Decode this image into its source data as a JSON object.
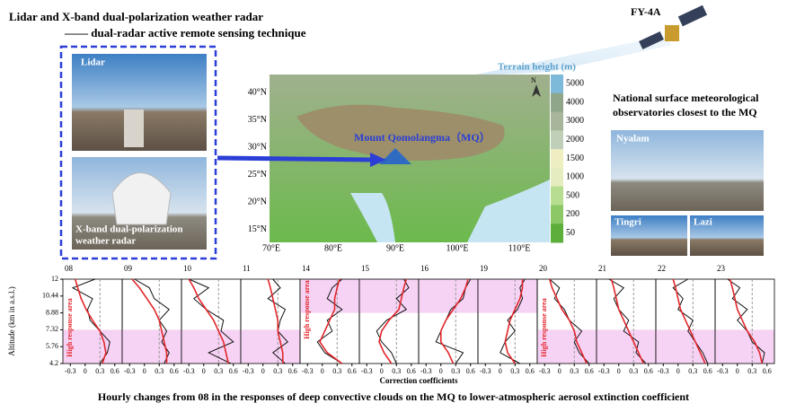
{
  "header": {
    "title": "Lidar and X-band dual-polarization weather radar",
    "subtitle": "—— dual-radar active remote sensing technique"
  },
  "photos": {
    "lidar": "Lidar",
    "radar": [
      "X-band dual-polarization",
      "weather radar"
    ]
  },
  "satellite": "FY-4A",
  "map": {
    "legend_title": "Terrain height (m)",
    "site": "Mount Qomolangma（MQ）",
    "north": "N",
    "lat_labels": [
      "40°N",
      "35°N",
      "30°N",
      "25°N",
      "20°N",
      "15°N"
    ],
    "lon_labels": [
      "70°E",
      "80°E",
      "90°E",
      "100°E",
      "110°E"
    ],
    "legend_labels": [
      "5000",
      "4000",
      "3000",
      "2000",
      "1500",
      "1000",
      "500",
      "200",
      "50"
    ],
    "legend_colors": [
      "#7db9d8",
      "#8fa68a",
      "#a7b59a",
      "#bfcfb8",
      "#eeeec0",
      "#e4ecc0",
      "#b7dd90",
      "#8cc866",
      "#5daf3c"
    ]
  },
  "stations": {
    "title": [
      "National surface meteorological",
      "observatories closest to the MQ"
    ],
    "names": [
      "Nyalam",
      "Tingri",
      "Lazi"
    ]
  },
  "profiles": {
    "type": "line",
    "ylabel": "Altitude (km in a.s.l.)",
    "xlabel": "Correction coefficients",
    "highlight_label": "High response area",
    "ylim": [
      4.2,
      12
    ],
    "yticks": [
      4.2,
      5.76,
      7.32,
      8.88,
      10.44,
      12
    ],
    "xlim": [
      -0.45,
      0.75
    ],
    "xticks": [
      -0.3,
      0,
      0.3,
      0.6
    ],
    "altitudes": [
      4.2,
      5.2,
      6.2,
      7.2,
      8.2,
      9.2,
      10.2,
      11.2,
      12
    ],
    "panels": [
      {
        "hour": "08",
        "highlight": [
          4.2,
          7.32
        ],
        "black": [
          0.3,
          0.45,
          0.5,
          0.3,
          0.1,
          0.05,
          0.15,
          -0.25,
          0.2
        ],
        "red": [
          0.35,
          0.42,
          0.38,
          0.3,
          0.15,
          0.02,
          -0.08,
          -0.15,
          -0.2
        ]
      },
      {
        "hour": "09",
        "highlight": [
          4.2,
          7.32
        ],
        "black": [
          0.4,
          0.5,
          0.35,
          0.45,
          0.3,
          0.5,
          0.2,
          0.1,
          -0.2
        ],
        "red": [
          0.45,
          0.45,
          0.4,
          0.35,
          0.3,
          0.2,
          0.05,
          -0.1,
          -0.25
        ]
      },
      {
        "hour": "10",
        "highlight": [
          4.2,
          7.32
        ],
        "black": [
          0.55,
          0.1,
          0.6,
          0.35,
          0.4,
          0.05,
          -0.2,
          0.1,
          -0.3
        ],
        "red": [
          0.5,
          0.45,
          0.4,
          0.3,
          0.2,
          0.05,
          -0.1,
          -0.2,
          -0.3
        ]
      },
      {
        "hour": "11",
        "highlight": [
          4.2,
          7.32
        ],
        "black": [
          0.45,
          0.2,
          0.5,
          0.3,
          0.35,
          0.45,
          0.1,
          0.35,
          0.2
        ],
        "red": [
          0.4,
          0.4,
          0.35,
          0.3,
          0.3,
          0.25,
          0.2,
          0.15,
          0.1
        ]
      },
      {
        "hour": "14",
        "highlight": [
          8.88,
          12
        ],
        "black": [
          0.4,
          0.05,
          -0.1,
          0.2,
          0.1,
          0.4,
          0.1,
          0.2,
          0.4
        ],
        "red": [
          0.4,
          0.1,
          -0.05,
          0.05,
          0.15,
          0.25,
          0.25,
          0.3,
          0.35
        ]
      },
      {
        "hour": "15",
        "highlight": [
          8.88,
          12
        ],
        "black": [
          0.3,
          0.2,
          0.0,
          -0.1,
          0.1,
          0.5,
          0.3,
          0.55,
          0.45
        ],
        "red": [
          0.2,
          0.05,
          -0.05,
          0.0,
          0.15,
          0.35,
          0.4,
          0.45,
          0.5
        ]
      },
      {
        "hour": "16",
        "highlight": [
          8.88,
          12
        ],
        "black": [
          0.3,
          0.45,
          -0.1,
          0.0,
          0.1,
          0.2,
          0.45,
          0.5,
          0.6
        ],
        "red": [
          0.25,
          0.15,
          0.0,
          0.0,
          0.1,
          0.25,
          0.4,
          0.5,
          0.55
        ]
      },
      {
        "hour": "19",
        "highlight": [
          8.88,
          12
        ],
        "black": [
          0.4,
          0.0,
          0.1,
          0.3,
          0.15,
          0.35,
          0.45,
          0.4,
          0.5
        ],
        "red": [
          0.3,
          0.15,
          0.1,
          0.15,
          0.2,
          0.3,
          0.4,
          0.45,
          0.45
        ]
      },
      {
        "hour": "20",
        "highlight": [
          4.2,
          7.32
        ],
        "black": [
          0.6,
          0.4,
          0.3,
          0.45,
          0.2,
          0.1,
          -0.1,
          0.0,
          -0.2
        ],
        "red": [
          0.55,
          0.45,
          0.35,
          0.3,
          0.2,
          0.05,
          -0.05,
          -0.15,
          -0.2
        ]
      },
      {
        "hour": "21",
        "highlight": [
          4.2,
          7.32
        ],
        "black": [
          0.55,
          0.35,
          0.4,
          0.1,
          0.2,
          0.0,
          -0.1,
          0.1,
          -0.2
        ],
        "red": [
          0.5,
          0.4,
          0.3,
          0.2,
          0.1,
          0.0,
          -0.05,
          -0.1,
          -0.15
        ]
      },
      {
        "hour": "22",
        "highlight": [
          4.2,
          7.32
        ],
        "black": [
          0.6,
          0.5,
          0.35,
          0.2,
          0.3,
          0.0,
          0.1,
          -0.1,
          0.2
        ],
        "red": [
          0.55,
          0.45,
          0.35,
          0.25,
          0.15,
          0.05,
          0.0,
          -0.05,
          -0.1
        ]
      },
      {
        "hour": "23",
        "highlight": [
          4.2,
          7.32
        ],
        "black": [
          0.5,
          0.55,
          0.3,
          0.2,
          0.0,
          0.2,
          -0.1,
          0.05,
          -0.2
        ],
        "red": [
          0.5,
          0.45,
          0.35,
          0.2,
          0.1,
          0.0,
          -0.05,
          -0.1,
          -0.15
        ]
      }
    ]
  },
  "caption": "Hourly changes from 08  in the responses of deep convective clouds on the MQ  to  lower-atmospheric aerosol extinction coefficient"
}
